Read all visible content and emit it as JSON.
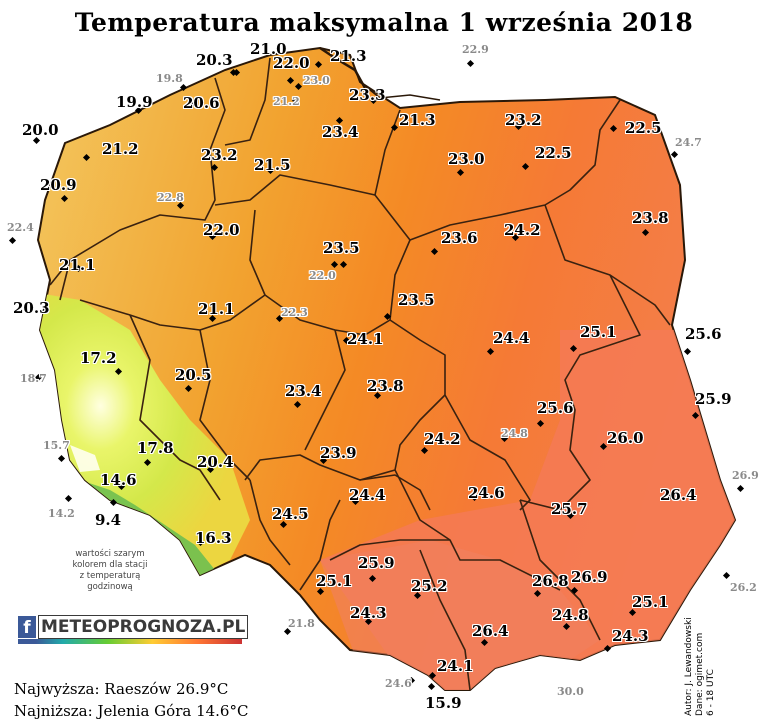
{
  "title": "Temperatura maksymalna 1 września 2018",
  "colors": {
    "cool": "#e8f56a",
    "warm": "#f0a030",
    "hot": "#ff7a30",
    "hottest": "#f06a55",
    "border": "#4a2a10"
  },
  "stations": [
    {
      "v": "21.0",
      "hr": false
    },
    {
      "v": "20.3",
      "hr": false
    },
    {
      "v": "21.3",
      "hr": false
    },
    {
      "v": "22.9",
      "hr": true
    },
    {
      "v": "19.8",
      "hr": true
    },
    {
      "v": "22.0",
      "hr": false
    },
    {
      "v": "23.0",
      "hr": true
    },
    {
      "v": "23.3",
      "hr": false
    },
    {
      "v": "19.9",
      "hr": false
    },
    {
      "v": "20.6",
      "hr": false
    },
    {
      "v": "21.2",
      "hr": true
    },
    {
      "v": "23.4",
      "hr": false
    },
    {
      "v": "20.0",
      "hr": false
    },
    {
      "v": "21.3",
      "hr": false
    },
    {
      "v": "23.2",
      "hr": false
    },
    {
      "v": "22.5",
      "hr": false
    },
    {
      "v": "21.2",
      "hr": false
    },
    {
      "v": "23.2",
      "hr": false
    },
    {
      "v": "21.5",
      "hr": false
    },
    {
      "v": "23.0",
      "hr": false
    },
    {
      "v": "22.5",
      "hr": false
    },
    {
      "v": "24.7",
      "hr": true
    },
    {
      "v": "20.9",
      "hr": false
    },
    {
      "v": "22.8",
      "hr": true
    },
    {
      "v": "22.4",
      "hr": true
    },
    {
      "v": "22.0",
      "hr": false
    },
    {
      "v": "23.5",
      "hr": false
    },
    {
      "v": "23.6",
      "hr": false
    },
    {
      "v": "24.2",
      "hr": false
    },
    {
      "v": "23.8",
      "hr": false
    },
    {
      "v": "21.1",
      "hr": false
    },
    {
      "v": "22.0",
      "hr": true
    },
    {
      "v": "20.3",
      "hr": false
    },
    {
      "v": "21.1",
      "hr": false
    },
    {
      "v": "22.3",
      "hr": true
    },
    {
      "v": "23.5",
      "hr": false
    },
    {
      "v": "24.1",
      "hr": false
    },
    {
      "v": "24.4",
      "hr": false
    },
    {
      "v": "25.1",
      "hr": false
    },
    {
      "v": "25.6",
      "hr": false
    },
    {
      "v": "17.2",
      "hr": false
    },
    {
      "v": "18.7",
      "hr": true
    },
    {
      "v": "20.5",
      "hr": false
    },
    {
      "v": "23.4",
      "hr": false
    },
    {
      "v": "23.8",
      "hr": false
    },
    {
      "v": "25.9",
      "hr": false
    },
    {
      "v": "25.6",
      "hr": false
    },
    {
      "v": "15.7",
      "hr": true
    },
    {
      "v": "17.8",
      "hr": false
    },
    {
      "v": "20.4",
      "hr": false
    },
    {
      "v": "23.9",
      "hr": false
    },
    {
      "v": "24.2",
      "hr": false
    },
    {
      "v": "24.8",
      "hr": true
    },
    {
      "v": "26.0",
      "hr": false
    },
    {
      "v": "26.9",
      "hr": true
    },
    {
      "v": "14.6",
      "hr": false
    },
    {
      "v": "14.2",
      "hr": true
    },
    {
      "v": "9.4",
      "hr": false
    },
    {
      "v": "24.4",
      "hr": false
    },
    {
      "v": "24.6",
      "hr": false
    },
    {
      "v": "26.4",
      "hr": false
    },
    {
      "v": "24.5",
      "hr": false
    },
    {
      "v": "25.7",
      "hr": false
    },
    {
      "v": "16.3",
      "hr": false
    },
    {
      "v": "25.9",
      "hr": false
    },
    {
      "v": "25.1",
      "hr": false
    },
    {
      "v": "25.2",
      "hr": false
    },
    {
      "v": "26.8",
      "hr": false
    },
    {
      "v": "26.9",
      "hr": false
    },
    {
      "v": "26.2",
      "hr": true
    },
    {
      "v": "25.1",
      "hr": false
    },
    {
      "v": "21.8",
      "hr": true
    },
    {
      "v": "24.3",
      "hr": false
    },
    {
      "v": "24.8",
      "hr": false
    },
    {
      "v": "26.4",
      "hr": false
    },
    {
      "v": "24.3",
      "hr": false
    },
    {
      "v": "24.1",
      "hr": false
    },
    {
      "v": "24.6",
      "hr": true
    },
    {
      "v": "15.9",
      "hr": false
    },
    {
      "v": "30.0",
      "hr": true
    }
  ],
  "note": {
    "line1": "wartości szarym",
    "line2": "kolorem dla stacji",
    "line3": "z temperaturą",
    "line4": "godzinową"
  },
  "logo": {
    "fb": "f",
    "text": "METEOPROGNOZA.PL"
  },
  "extremes": {
    "max": "Najwyższa: Raeszów 26.9°C",
    "min": "Najniższa: Jelenia Góra 14.6°C"
  },
  "credits": {
    "line1": "Autor: J. Lewandowski",
    "line2": "Dane: ogimet.com",
    "line3": "6 - 18 UTC"
  }
}
